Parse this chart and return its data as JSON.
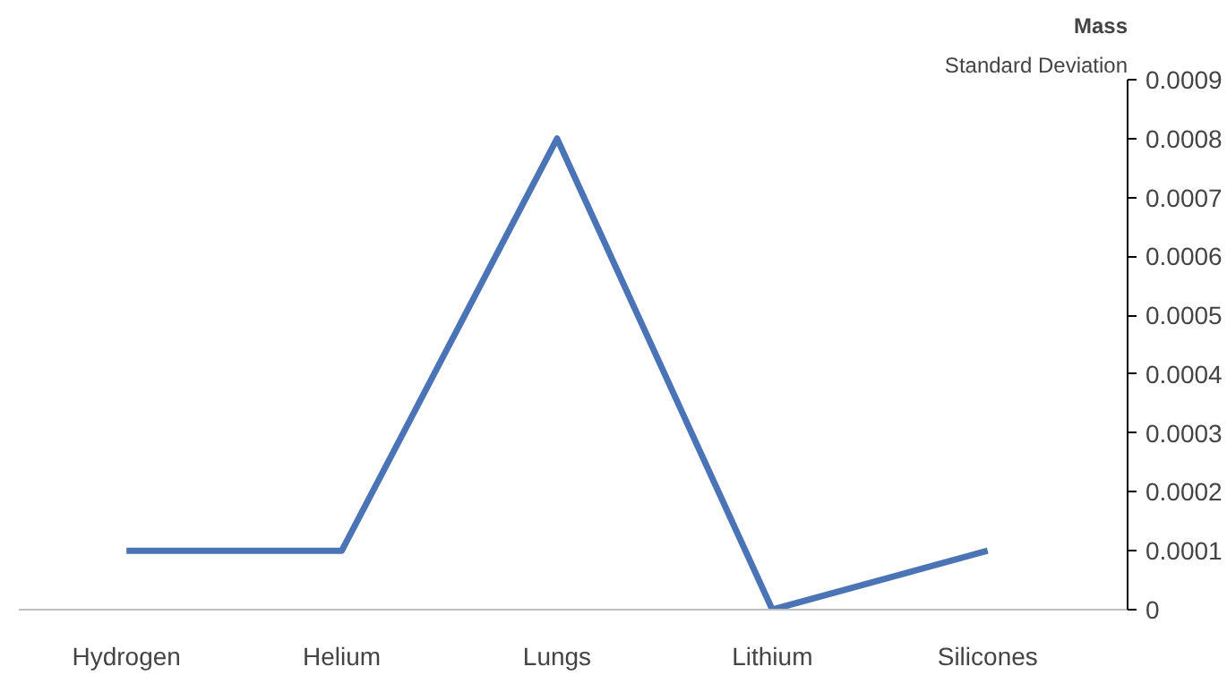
{
  "chart_data": {
    "type": "line",
    "title": "Mass",
    "subtitle": "Standard Deviation",
    "categories": [
      "Hydrogen",
      "Helium",
      "Lungs",
      "Lithium",
      "Silicones"
    ],
    "series": [
      {
        "color": "#4a74b5",
        "values": [
          0.0001,
          0.0001,
          0.0008,
          0,
          0.0001
        ]
      }
    ],
    "ylim": [
      0,
      0.0009
    ],
    "yticks": [
      0,
      0.0001,
      0.0002,
      0.0003,
      0.0004,
      0.0005,
      0.0006,
      0.0007,
      0.0008,
      0.0009
    ],
    "grid": false,
    "marker": "none",
    "line_style": "solid"
  }
}
